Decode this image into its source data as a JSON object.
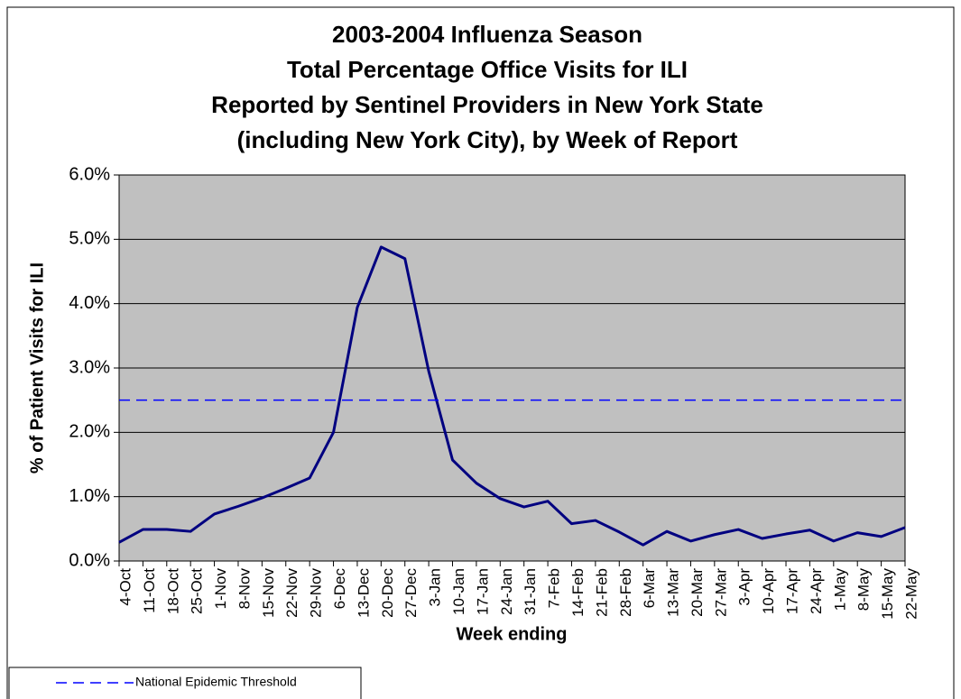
{
  "chart_data": {
    "type": "line",
    "title": [
      "2003-2004 Influenza Season",
      "Total Percentage Office Visits for ILI",
      "Reported by Sentinel Providers in New York State",
      "(including New York City), by Week of Report"
    ],
    "x_label": "Week ending",
    "y_label": "% of Patient Visits for ILI",
    "categories": [
      "4-Oct",
      "11-Oct",
      "18-Oct",
      "25-Oct",
      "1-Nov",
      "8-Nov",
      "15-Nov",
      "22-Nov",
      "29-Nov",
      "6-Dec",
      "13-Dec",
      "20-Dec",
      "27-Dec",
      "3-Jan",
      "10-Jan",
      "17-Jan",
      "24-Jan",
      "31-Jan",
      "7-Feb",
      "14-Feb",
      "21-Feb",
      "28-Feb",
      "6-Mar",
      "13-Mar",
      "20-Mar",
      "27-Mar",
      "3-Apr",
      "10-Apr",
      "17-Apr",
      "24-Apr",
      "1-May",
      "8-May",
      "15-May",
      "22-May"
    ],
    "series": [
      {
        "color": "#000080",
        "dash": false,
        "values": [
          0.29,
          0.49,
          0.49,
          0.46,
          0.73,
          0.85,
          0.98,
          1.13,
          1.29,
          2.0,
          3.94,
          4.88,
          4.7,
          2.95,
          1.57,
          1.21,
          0.97,
          0.84,
          0.93,
          0.58,
          0.63,
          0.45,
          0.25,
          0.46,
          0.31,
          0.41,
          0.49,
          0.35,
          0.42,
          0.48,
          0.31,
          0.44,
          0.38,
          0.52
        ]
      },
      {
        "name": "National Epidemic Threshold",
        "color": "#0000ff",
        "dash": true,
        "values": [
          2.5,
          2.5,
          2.5,
          2.5,
          2.5,
          2.5,
          2.5,
          2.5,
          2.5,
          2.5,
          2.5,
          2.5,
          2.5,
          2.5,
          2.5,
          2.5,
          2.5,
          2.5,
          2.5,
          2.5,
          2.5,
          2.5,
          2.5,
          2.5,
          2.5,
          2.5,
          2.5,
          2.5,
          2.5,
          2.5,
          2.5,
          2.5,
          2.5,
          2.5
        ]
      }
    ],
    "ylim": [
      0,
      6
    ],
    "yticks": [
      {
        "value": 0,
        "label": "0.0%"
      },
      {
        "value": 1,
        "label": "1.0%"
      },
      {
        "value": 2,
        "label": "2.0%"
      },
      {
        "value": 3,
        "label": "3.0%"
      },
      {
        "value": 4,
        "label": "4.0%"
      },
      {
        "value": 5,
        "label": "5.0%"
      },
      {
        "value": 6,
        "label": "6.0%"
      }
    ],
    "grid": true,
    "plot_background": "#c0c0c0",
    "legend": "bottom-left"
  }
}
